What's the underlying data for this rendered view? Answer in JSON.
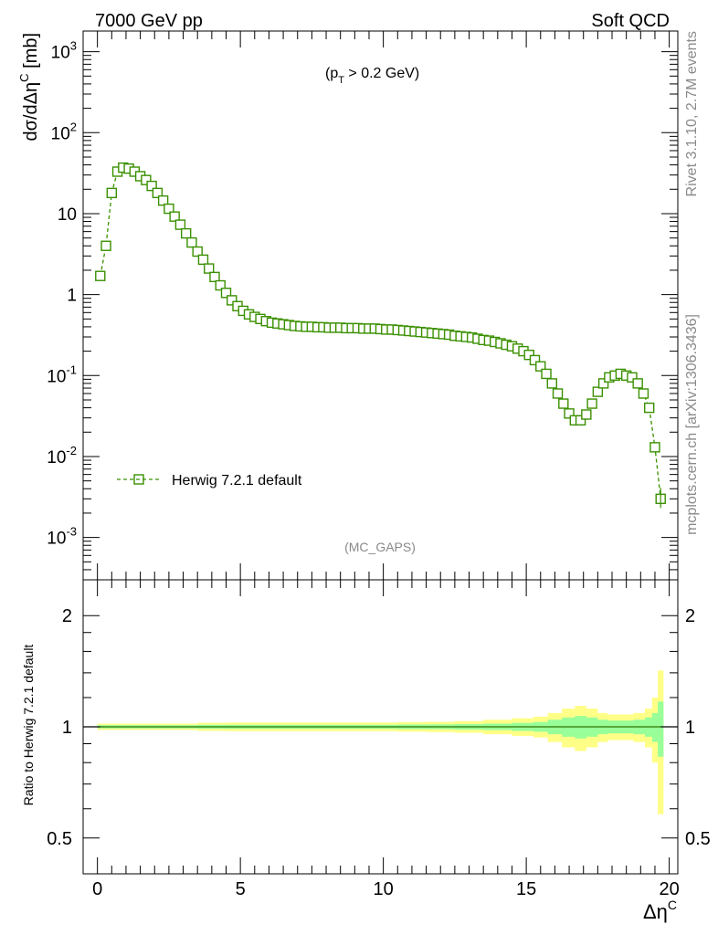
{
  "header": {
    "left": "7000 GeV pp",
    "right": "Soft QCD",
    "cut_main": "(p",
    "cut_sub": "T",
    "cut_rest": " > 0.2 GeV)",
    "analysis": "(MC_GAPS)"
  },
  "side": {
    "rivet": "Rivet 3.1.10,  2.7M events",
    "mcplots": "mcplots.cern.ch [arXiv:1306.3436]"
  },
  "axes": {
    "ylabel_main": "dσ/dΔη",
    "ylabel_main_sup": "C",
    "ylabel_main_unit": " [mb]",
    "ylabel_ratio": "Ratio to Herwig 7.2.1 default",
    "xlabel": "Δη",
    "xlabel_sup": "C"
  },
  "colors": {
    "series": "#3a9000",
    "band_inner": "#99ff99",
    "band_outer": "#ffff88"
  },
  "chart_data": [
    {
      "type": "line",
      "title": "",
      "xlabel": "Δη^C",
      "ylabel": "dσ/dΔη^C [mb]",
      "yscale": "log",
      "xlim": [
        -0.5,
        20.3
      ],
      "ylim": [
        0.0003,
        1800
      ],
      "x_ticks": [
        "0",
        "5",
        "10",
        "15",
        "20"
      ],
      "y_ticks": [
        "10^-3",
        "10^-2",
        "10^-1",
        "1",
        "10",
        "10^2",
        "10^3"
      ],
      "legend": "left, middle-low",
      "series": [
        {
          "name": "Herwig 7.2.1 default",
          "x": [
            0.1,
            0.3,
            0.5,
            0.7,
            0.9,
            1.1,
            1.3,
            1.5,
            1.7,
            1.9,
            2.1,
            2.3,
            2.5,
            2.7,
            2.9,
            3.1,
            3.3,
            3.5,
            3.7,
            3.9,
            4.1,
            4.3,
            4.5,
            4.7,
            4.9,
            5.1,
            5.3,
            5.5,
            5.7,
            5.9,
            6.1,
            6.3,
            6.5,
            6.7,
            6.9,
            7.1,
            7.3,
            7.5,
            7.7,
            7.9,
            8.1,
            8.3,
            8.5,
            8.7,
            8.9,
            9.1,
            9.3,
            9.5,
            9.7,
            9.9,
            10.1,
            10.3,
            10.5,
            10.7,
            10.9,
            11.1,
            11.3,
            11.5,
            11.7,
            11.9,
            12.1,
            12.3,
            12.5,
            12.7,
            12.9,
            13.1,
            13.3,
            13.5,
            13.7,
            13.9,
            14.1,
            14.3,
            14.5,
            14.7,
            14.9,
            15.1,
            15.3,
            15.5,
            15.7,
            15.9,
            16.1,
            16.3,
            16.5,
            16.7,
            16.9,
            17.1,
            17.3,
            17.5,
            17.7,
            17.9,
            18.1,
            18.3,
            18.5,
            18.7,
            18.9,
            19.1,
            19.3,
            19.5,
            19.7
          ],
          "y": [
            1.7,
            4.0,
            18,
            33,
            37,
            36,
            33,
            29,
            26,
            22,
            18,
            14.5,
            11.5,
            9.2,
            7.3,
            5.7,
            4.4,
            3.4,
            2.7,
            2.1,
            1.65,
            1.3,
            1.05,
            0.85,
            0.72,
            0.63,
            0.57,
            0.53,
            0.5,
            0.47,
            0.45,
            0.44,
            0.43,
            0.42,
            0.41,
            0.405,
            0.4,
            0.4,
            0.395,
            0.395,
            0.39,
            0.39,
            0.39,
            0.385,
            0.385,
            0.385,
            0.38,
            0.38,
            0.38,
            0.375,
            0.37,
            0.37,
            0.365,
            0.36,
            0.355,
            0.35,
            0.345,
            0.34,
            0.335,
            0.33,
            0.325,
            0.32,
            0.31,
            0.305,
            0.3,
            0.295,
            0.285,
            0.275,
            0.27,
            0.26,
            0.25,
            0.24,
            0.23,
            0.215,
            0.2,
            0.18,
            0.155,
            0.13,
            0.105,
            0.08,
            0.06,
            0.045,
            0.034,
            0.028,
            0.028,
            0.033,
            0.045,
            0.063,
            0.08,
            0.095,
            0.1,
            0.105,
            0.1,
            0.095,
            0.08,
            0.06,
            0.04,
            0.013,
            0.003
          ]
        }
      ]
    },
    {
      "type": "area",
      "title": "",
      "xlabel": "Δη^C",
      "ylabel": "Ratio to Herwig 7.2.1 default",
      "yscale": "log",
      "xlim": [
        -0.5,
        20.3
      ],
      "ylim": [
        0.4,
        2.5
      ],
      "y_ticks": [
        "0.5",
        "1",
        "2"
      ],
      "series": [
        {
          "name": "Herwig 7.2.1 default",
          "x": [
            0.1,
            1,
            2,
            3,
            4,
            5,
            6,
            7,
            8,
            9,
            10,
            11,
            12,
            13,
            14,
            15,
            15.5,
            16,
            16.5,
            16.9,
            17.3,
            17.7,
            18,
            18.5,
            19,
            19.3,
            19.5,
            19.7
          ],
          "ratio": [
            1,
            1,
            1,
            1,
            1,
            1,
            1,
            1,
            1,
            1,
            1,
            1,
            1,
            1,
            1,
            1,
            1,
            1,
            1,
            1,
            1,
            1,
            1,
            1,
            1,
            1,
            1,
            1
          ],
          "band_inner_err": [
            0.01,
            0.01,
            0.01,
            0.01,
            0.012,
            0.013,
            0.013,
            0.013,
            0.013,
            0.013,
            0.013,
            0.014,
            0.015,
            0.017,
            0.02,
            0.025,
            0.03,
            0.045,
            0.06,
            0.07,
            0.06,
            0.045,
            0.04,
            0.04,
            0.045,
            0.06,
            0.09,
            0.17
          ],
          "band_outer_err": [
            0.02,
            0.02,
            0.02,
            0.02,
            0.025,
            0.027,
            0.027,
            0.027,
            0.027,
            0.027,
            0.027,
            0.03,
            0.032,
            0.036,
            0.045,
            0.055,
            0.065,
            0.09,
            0.12,
            0.14,
            0.12,
            0.09,
            0.08,
            0.08,
            0.09,
            0.12,
            0.2,
            0.42
          ]
        }
      ]
    }
  ]
}
